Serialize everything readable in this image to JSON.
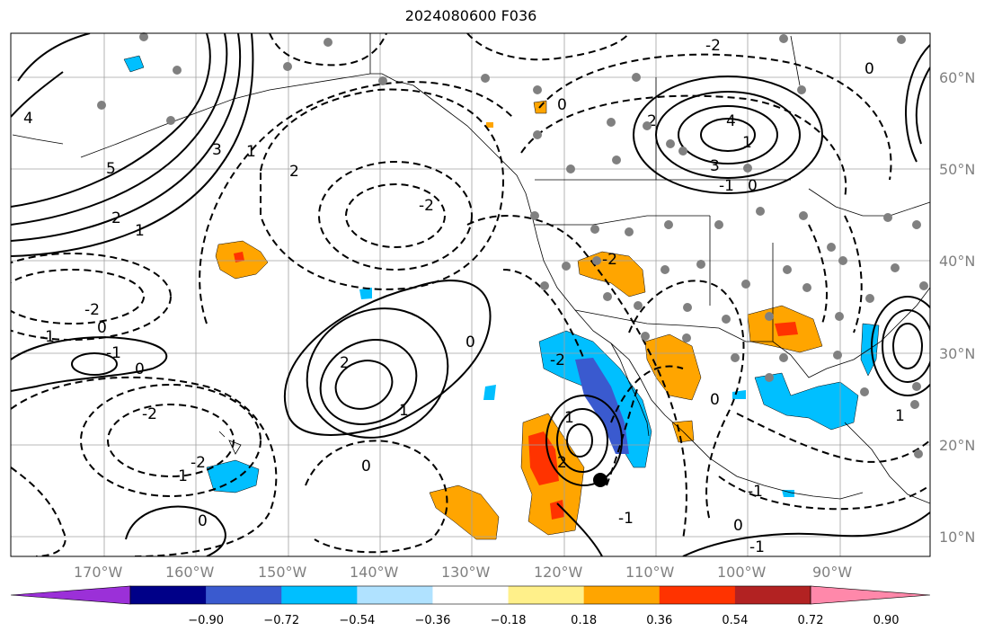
{
  "title": "2024080600 F036",
  "lon_labels": [
    "170°W",
    "160°W",
    "150°W",
    "140°W",
    "130°W",
    "120°W",
    "110°W",
    "100°W",
    "90°W"
  ],
  "lat_labels": [
    "60°N",
    "50°N",
    "40°N",
    "30°N",
    "20°N",
    "10°N"
  ],
  "colorbar": {
    "ticks": [
      "−0.90",
      "−0.72",
      "−0.54",
      "−0.36",
      "−0.18",
      "0.18",
      "0.36",
      "0.54",
      "0.72",
      "0.90"
    ],
    "colors": [
      "#9b30d8",
      "#000088",
      "#3a5acf",
      "#00bfff",
      "#b0e2ff",
      "#ffffff",
      "#fff08a",
      "#ffa500",
      "#ff3300",
      "#b22222",
      "#ff88aa"
    ],
    "extend": "both"
  },
  "contour_labels": [
    "5",
    "4",
    "3",
    "2",
    "1",
    "0",
    "-1",
    "-2",
    "2",
    "1",
    "0",
    "-1",
    "-2",
    "-2",
    "-1",
    "0",
    "1",
    "2",
    "3",
    "4",
    "-2",
    "0",
    "1",
    "2",
    "-2",
    "0",
    "-1",
    "0",
    "1",
    "2",
    "-2",
    "0",
    "-1",
    "0",
    "-1",
    "-2",
    "0",
    "-1",
    "1",
    "0"
  ],
  "colors": {
    "grid": "#a0a0a0",
    "coast": "#000000",
    "contour": "#000000",
    "station": "#808080"
  }
}
